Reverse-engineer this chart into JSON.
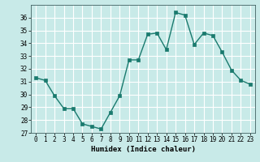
{
  "x": [
    0,
    1,
    2,
    3,
    4,
    5,
    6,
    7,
    8,
    9,
    10,
    11,
    12,
    13,
    14,
    15,
    16,
    17,
    18,
    19,
    20,
    21,
    22,
    23
  ],
  "y": [
    31.3,
    31.1,
    29.9,
    28.9,
    28.9,
    27.7,
    27.5,
    27.3,
    28.6,
    29.9,
    32.7,
    32.7,
    34.7,
    34.8,
    33.5,
    36.4,
    36.2,
    33.9,
    34.8,
    34.6,
    33.3,
    31.9,
    31.1,
    30.8
  ],
  "line_color": "#1a7a6e",
  "marker_color": "#1a7a6e",
  "bg_color": "#c8eae8",
  "grid_color": "#ffffff",
  "xlabel": "Humidex (Indice chaleur)",
  "ylim": [
    27,
    37
  ],
  "xlim_min": -0.5,
  "xlim_max": 23.5,
  "yticks": [
    27,
    28,
    29,
    30,
    31,
    32,
    33,
    34,
    35,
    36
  ],
  "xticks": [
    0,
    1,
    2,
    3,
    4,
    5,
    6,
    7,
    8,
    9,
    10,
    11,
    12,
    13,
    14,
    15,
    16,
    17,
    18,
    19,
    20,
    21,
    22,
    23
  ],
  "tick_fontsize": 5.5,
  "label_fontsize": 6.5,
  "linewidth": 1.0,
  "markersize": 2.5
}
